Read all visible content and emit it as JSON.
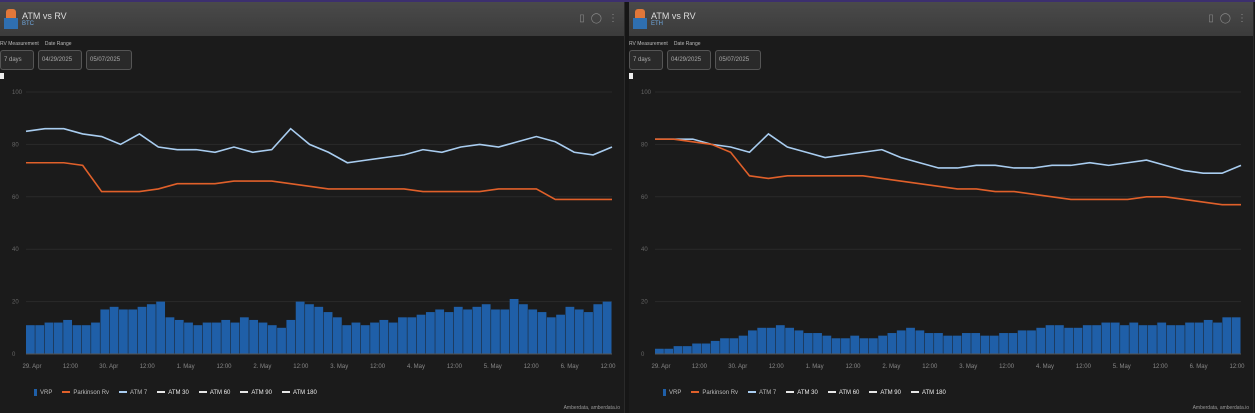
{
  "common": {
    "title": "ATM vs RV",
    "rv_label": "RV Measurement",
    "date_label": "Date Range",
    "rv_value": "7 days",
    "date_from": "04/29/2025",
    "date_to": "05/07/2025",
    "footer": "Amberdata, amberdata.io",
    "legend": [
      "VRP",
      "Parkinson Rv",
      "ATM 7",
      "ATM 30",
      "ATM 60",
      "ATM 90",
      "ATM 180"
    ],
    "colors": {
      "vrp": "#1f5fa8",
      "rv": "#e0602a",
      "atm7": "#a9cdf0",
      "other": "#e6e6e6",
      "grid": "#2a2a2a"
    }
  },
  "panels": [
    {
      "subtitle": "BTC"
    },
    {
      "subtitle": "ETH"
    }
  ],
  "chart_data": [
    {
      "type": "line",
      "title": "ATM vs RV",
      "asset": "BTC",
      "ylim": [
        0,
        100
      ],
      "yticks": [
        "0",
        "20",
        "40",
        "60",
        "80",
        "100"
      ],
      "xticks": [
        "29. Apr",
        "12:00",
        "30. Apr",
        "12:00",
        "1. May",
        "12:00",
        "2. May",
        "12:00",
        "3. May",
        "12:00",
        "4. May",
        "12:00",
        "5. May",
        "12:00",
        "6. May",
        "12:00"
      ],
      "series": [
        {
          "name": "ATM 7",
          "values": [
            85,
            86,
            86,
            84,
            83,
            80,
            84,
            79,
            78,
            78,
            77,
            79,
            77,
            78,
            86,
            80,
            77,
            73,
            74,
            75,
            76,
            78,
            77,
            79,
            80,
            79,
            81,
            83,
            81,
            77,
            76,
            79
          ]
        },
        {
          "name": "Parkinson Rv",
          "values": [
            73,
            73,
            73,
            72,
            62,
            62,
            62,
            63,
            65,
            65,
            65,
            66,
            66,
            66,
            65,
            64,
            63,
            63,
            63,
            63,
            63,
            62,
            62,
            62,
            62,
            63,
            63,
            63,
            59,
            59,
            59,
            59
          ]
        },
        {
          "name": "VRP",
          "type": "bar",
          "values": [
            11,
            11,
            12,
            12,
            13,
            11,
            11,
            12,
            17,
            18,
            17,
            17,
            18,
            19,
            20,
            14,
            13,
            12,
            11,
            12,
            12,
            13,
            12,
            14,
            13,
            12,
            11,
            10,
            13,
            20,
            19,
            18,
            16,
            14,
            11,
            12,
            11,
            12,
            13,
            12,
            14,
            14,
            15,
            16,
            17,
            16,
            18,
            17,
            18,
            19,
            17,
            17,
            21,
            19,
            17,
            16,
            14,
            15,
            18,
            17,
            16,
            19,
            20
          ]
        }
      ]
    },
    {
      "type": "line",
      "title": "ATM vs RV",
      "asset": "ETH",
      "ylim": [
        0,
        100
      ],
      "yticks": [
        "0",
        "20",
        "40",
        "60",
        "80",
        "100"
      ],
      "xticks": [
        "29. Apr",
        "12:00",
        "30. Apr",
        "12:00",
        "1. May",
        "12:00",
        "2. May",
        "12:00",
        "3. May",
        "12:00",
        "4. May",
        "12:00",
        "5. May",
        "12:00",
        "6. May",
        "12:00"
      ],
      "series": [
        {
          "name": "ATM 7",
          "values": [
            82,
            82,
            82,
            80,
            79,
            77,
            84,
            79,
            77,
            75,
            76,
            77,
            78,
            75,
            73,
            71,
            71,
            72,
            72,
            71,
            71,
            72,
            72,
            73,
            72,
            73,
            74,
            72,
            70,
            69,
            69,
            72
          ]
        },
        {
          "name": "Parkinson Rv",
          "values": [
            82,
            82,
            81,
            80,
            77,
            68,
            67,
            68,
            68,
            68,
            68,
            68,
            67,
            66,
            65,
            64,
            63,
            63,
            62,
            62,
            61,
            60,
            59,
            59,
            59,
            59,
            60,
            60,
            59,
            58,
            57,
            57
          ]
        },
        {
          "name": "VRP",
          "type": "bar",
          "values": [
            2,
            2,
            3,
            3,
            4,
            4,
            5,
            6,
            6,
            7,
            9,
            10,
            10,
            11,
            10,
            9,
            8,
            8,
            7,
            6,
            6,
            7,
            6,
            6,
            7,
            8,
            9,
            10,
            9,
            8,
            8,
            7,
            7,
            8,
            8,
            7,
            7,
            8,
            8,
            9,
            9,
            10,
            11,
            11,
            10,
            10,
            11,
            11,
            12,
            12,
            11,
            12,
            11,
            11,
            12,
            11,
            11,
            12,
            12,
            13,
            12,
            14,
            14
          ]
        }
      ]
    }
  ]
}
